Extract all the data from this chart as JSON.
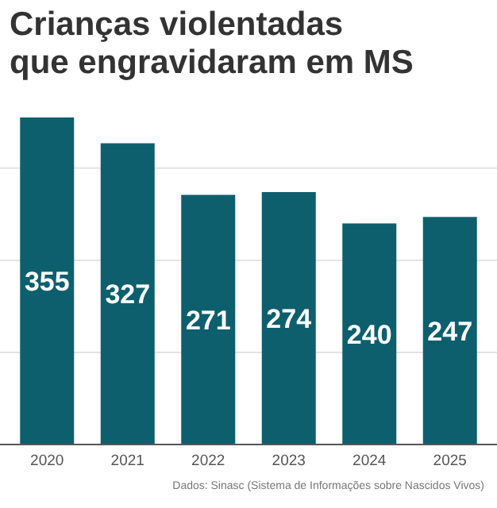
{
  "chart_data": {
    "type": "bar",
    "title": "Crianças violentadas\nque engravidaram em MS",
    "categories": [
      "2020",
      "2021",
      "2022",
      "2023",
      "2024",
      "2025"
    ],
    "values": [
      355,
      327,
      271,
      274,
      240,
      247
    ],
    "color": "#0e5f6e",
    "yticks": [
      {
        "value": 0,
        "label": null
      },
      {
        "value": 100,
        "label": null
      },
      {
        "value": 200,
        "label": null
      },
      {
        "value": 300,
        "label": null
      }
    ],
    "tick_labels": "x",
    "grid": "y",
    "data_labels": true,
    "annotations": [
      "Dados: Sinasc (Sistema de Informações sobre Nascidos Vivos)"
    ]
  }
}
